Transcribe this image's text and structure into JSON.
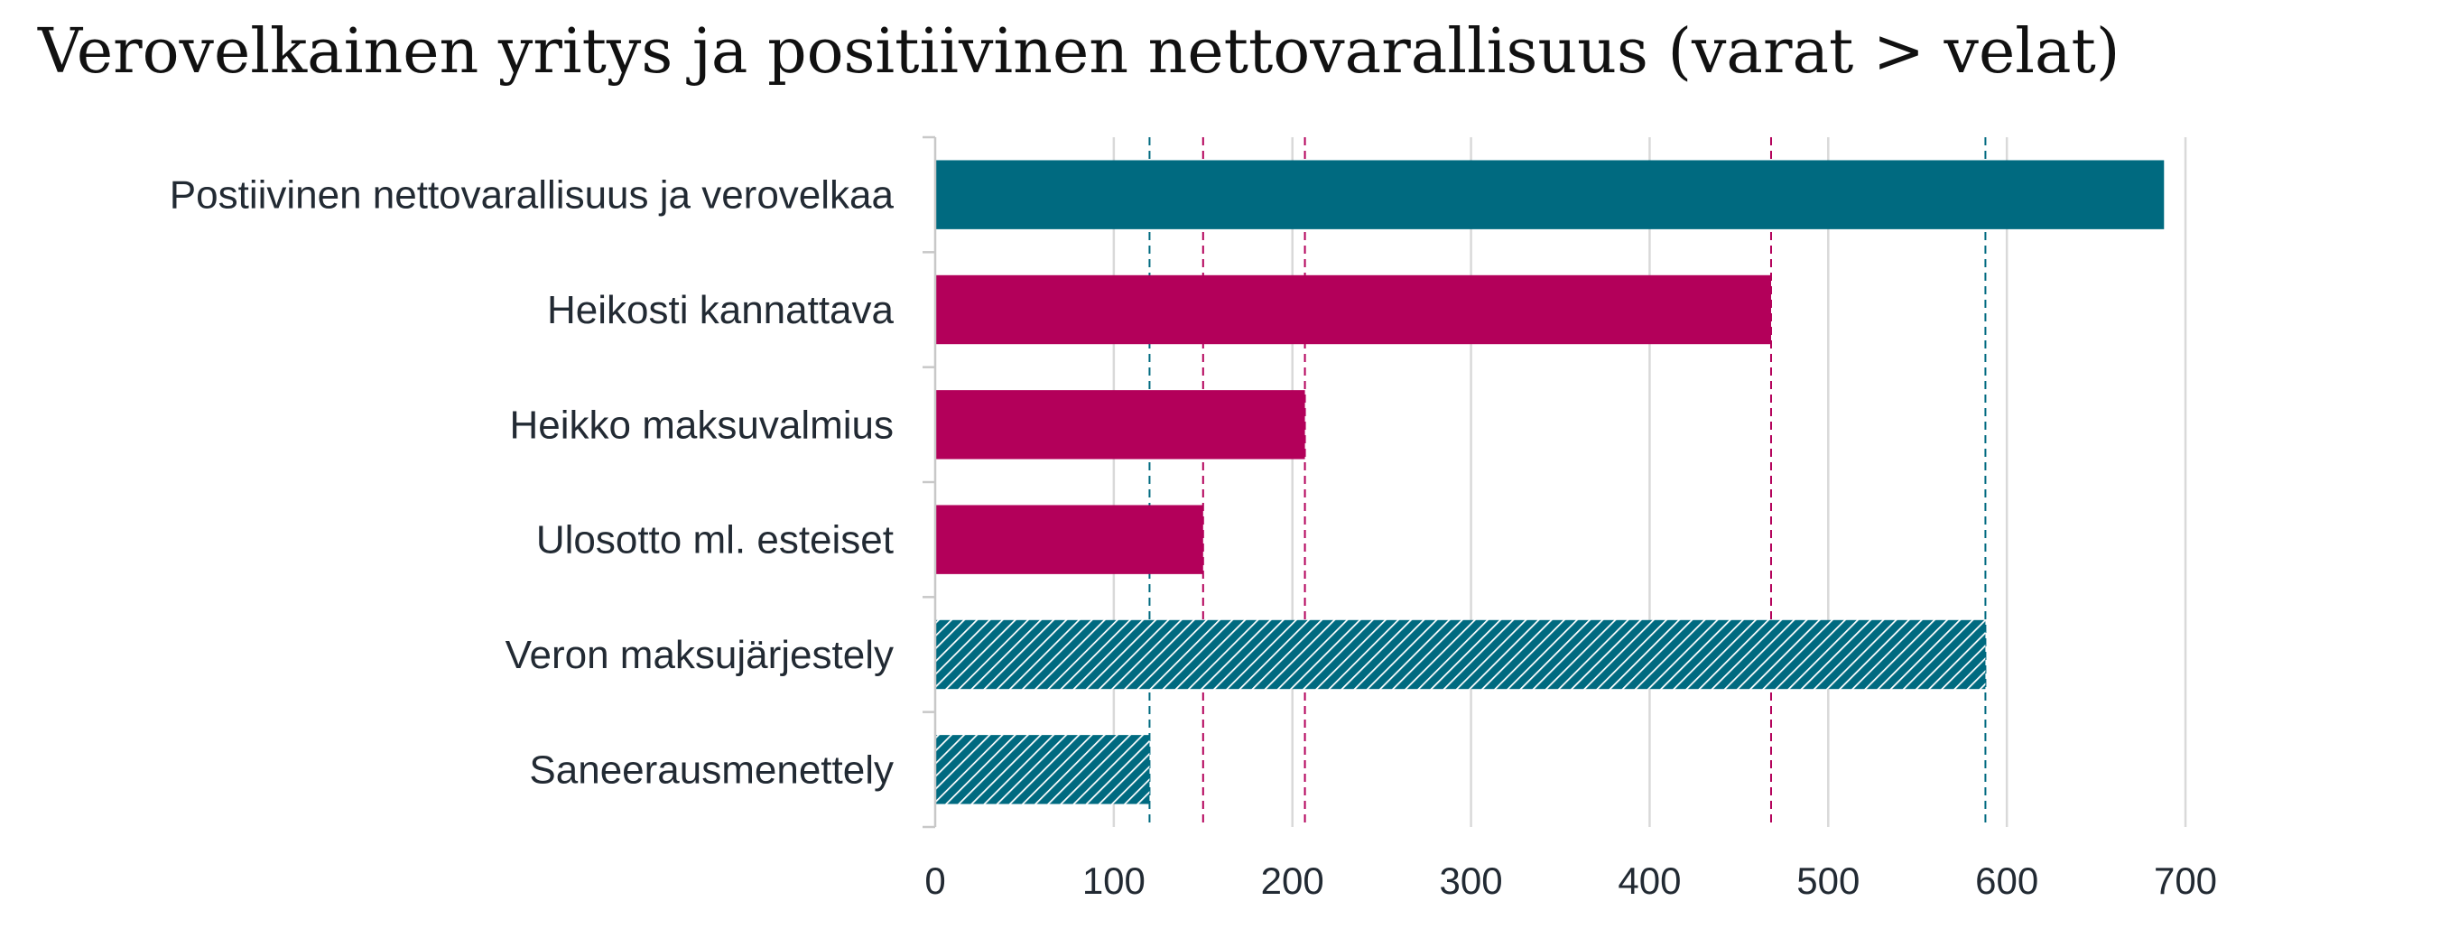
{
  "chart_data": {
    "type": "bar",
    "orientation": "horizontal",
    "title": "Verovelkainen yritys ja positiivinen nettovarallisuus (varat > velat)",
    "categories": [
      "Postiivinen nettovarallisuus ja verovelkaa",
      "Heikosti kannattava",
      "Heikko maksuvalmius",
      "Ulosotto ml. esteiset",
      "Veron maksujärjestely",
      "Saneerausmenettely"
    ],
    "values": [
      688,
      468,
      207,
      150,
      588,
      120
    ],
    "bar_colors": [
      "#006a80",
      "#b3005a",
      "#b3005a",
      "#b3005a",
      "#006a80",
      "#006a80"
    ],
    "bar_patterns": [
      "solid",
      "solid",
      "solid",
      "solid",
      "hatch",
      "hatch"
    ],
    "reference_lines": [
      {
        "x": 120,
        "color": "#006a80",
        "style": "dashed"
      },
      {
        "x": 150,
        "color": "#b3005a",
        "style": "dashed"
      },
      {
        "x": 207,
        "color": "#b3005a",
        "style": "dashed"
      },
      {
        "x": 468,
        "color": "#b3005a",
        "style": "dashed"
      },
      {
        "x": 588,
        "color": "#006a80",
        "style": "dashed"
      }
    ],
    "xlim": [
      0,
      700
    ],
    "xticks": [
      0,
      100,
      200,
      300,
      400,
      500,
      600,
      700
    ],
    "xlabel": "",
    "ylabel": "",
    "grid": "vertical"
  }
}
